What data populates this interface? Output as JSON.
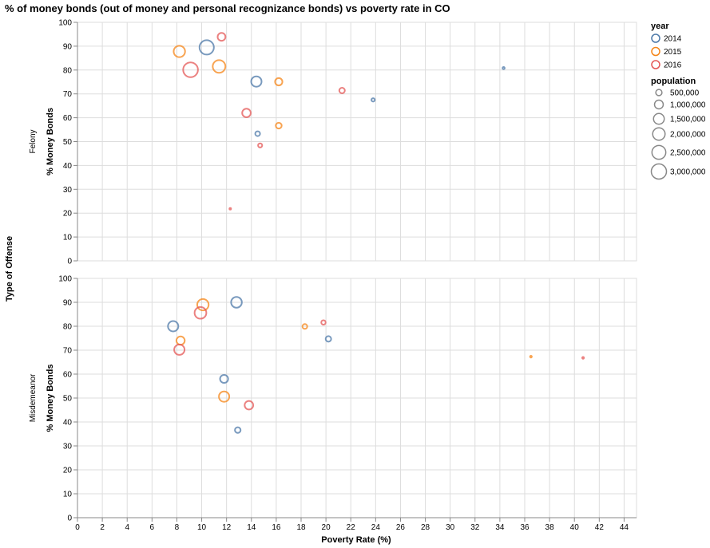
{
  "chart_data": {
    "type": "scatter",
    "title": "% of money bonds (out of money and personal recognizance bonds) vs poverty rate in CO",
    "xlabel": "Poverty Rate (%)",
    "ylabel": "% Money Bonds",
    "row_title": "Type of Offense",
    "xlim": [
      0,
      45
    ],
    "x_ticks": [
      0,
      2,
      4,
      6,
      8,
      10,
      12,
      14,
      16,
      18,
      20,
      22,
      24,
      26,
      28,
      30,
      32,
      34,
      36,
      38,
      40,
      42,
      44
    ],
    "ylim": [
      0,
      100
    ],
    "y_ticks": [
      0,
      10,
      20,
      30,
      40,
      50,
      60,
      70,
      80,
      90,
      100
    ],
    "grid": true,
    "legend_placement": "right",
    "color_legend": {
      "title": "year",
      "entries": [
        {
          "label": "2014",
          "color": "#4c78a8"
        },
        {
          "label": "2015",
          "color": "#f58518"
        },
        {
          "label": "2016",
          "color": "#e45756"
        }
      ]
    },
    "size_legend": {
      "title": "population",
      "entries": [
        {
          "label": "500,000",
          "value": 500000
        },
        {
          "label": "1,000,000",
          "value": 1000000
        },
        {
          "label": "1,500,000",
          "value": 1500000
        },
        {
          "label": "2,000,000",
          "value": 2000000
        },
        {
          "label": "2,500,000",
          "value": 2500000
        },
        {
          "label": "3,000,000",
          "value": 3000000
        }
      ]
    },
    "facets": [
      {
        "label": "Felony",
        "points": [
          {
            "year": "2014",
            "x": 10.4,
            "y": 89.5,
            "population": 2700000
          },
          {
            "year": "2014",
            "x": 14.4,
            "y": 75.2,
            "population": 1400000
          },
          {
            "year": "2014",
            "x": 14.5,
            "y": 53.3,
            "population": 300000
          },
          {
            "year": "2014",
            "x": 23.8,
            "y": 67.5,
            "population": 150000
          },
          {
            "year": "2014",
            "x": 34.3,
            "y": 80.8,
            "population": 60000
          },
          {
            "year": "2015",
            "x": 8.2,
            "y": 87.8,
            "population": 1700000
          },
          {
            "year": "2015",
            "x": 11.4,
            "y": 81.5,
            "population": 2100000
          },
          {
            "year": "2015",
            "x": 16.2,
            "y": 75.1,
            "population": 700000
          },
          {
            "year": "2015",
            "x": 16.2,
            "y": 56.7,
            "population": 450000
          },
          {
            "year": "2016",
            "x": 9.1,
            "y": 80.1,
            "population": 2850000
          },
          {
            "year": "2016",
            "x": 11.6,
            "y": 93.9,
            "population": 800000
          },
          {
            "year": "2016",
            "x": 13.6,
            "y": 62.0,
            "population": 950000
          },
          {
            "year": "2016",
            "x": 14.7,
            "y": 48.4,
            "population": 220000
          },
          {
            "year": "2016",
            "x": 21.3,
            "y": 71.4,
            "population": 400000
          },
          {
            "year": "2016",
            "x": 12.3,
            "y": 21.8,
            "population": 25000
          }
        ]
      },
      {
        "label": "Misdemeanor",
        "points": [
          {
            "year": "2014",
            "x": 7.7,
            "y": 80.0,
            "population": 1400000
          },
          {
            "year": "2014",
            "x": 12.8,
            "y": 90.0,
            "population": 1500000
          },
          {
            "year": "2014",
            "x": 11.8,
            "y": 58.0,
            "population": 850000
          },
          {
            "year": "2014",
            "x": 20.2,
            "y": 74.7,
            "population": 400000
          },
          {
            "year": "2014",
            "x": 12.9,
            "y": 36.6,
            "population": 420000
          },
          {
            "year": "2015",
            "x": 10.1,
            "y": 89.0,
            "population": 1700000
          },
          {
            "year": "2015",
            "x": 8.3,
            "y": 74.0,
            "population": 900000
          },
          {
            "year": "2015",
            "x": 11.8,
            "y": 50.6,
            "population": 1400000
          },
          {
            "year": "2015",
            "x": 18.3,
            "y": 79.9,
            "population": 300000
          },
          {
            "year": "2015",
            "x": 36.5,
            "y": 67.3,
            "population": 40000
          },
          {
            "year": "2016",
            "x": 9.9,
            "y": 85.6,
            "population": 1800000
          },
          {
            "year": "2016",
            "x": 8.2,
            "y": 70.2,
            "population": 1400000
          },
          {
            "year": "2016",
            "x": 13.8,
            "y": 47.0,
            "population": 950000
          },
          {
            "year": "2016",
            "x": 19.8,
            "y": 81.6,
            "population": 250000
          },
          {
            "year": "2016",
            "x": 40.7,
            "y": 66.8,
            "population": 40000
          }
        ]
      }
    ]
  }
}
